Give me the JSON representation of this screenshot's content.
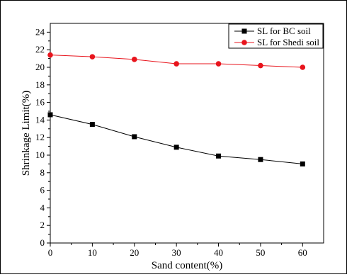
{
  "chart_data": {
    "type": "line",
    "xlabel": "Sand content(%)",
    "ylabel": "Shrinkage Limit(%)",
    "xlim": [
      0,
      65
    ],
    "ylim": [
      0,
      25
    ],
    "x_ticks": [
      "0",
      "10",
      "20",
      "30",
      "40",
      "50",
      "60"
    ],
    "y_ticks": [
      "0",
      "2",
      "4",
      "6",
      "8",
      "10",
      "12",
      "14",
      "16",
      "18",
      "20",
      "22",
      "24"
    ],
    "legend_position": "top-right",
    "grid": false,
    "series": [
      {
        "name": "SL for BC soil",
        "color": "#000000",
        "marker": "square",
        "x": [
          0,
          10,
          20,
          30,
          40,
          50,
          60
        ],
        "values": [
          14.6,
          13.5,
          12.1,
          10.9,
          9.9,
          9.5,
          9.0
        ]
      },
      {
        "name": "SL for Shedi soil",
        "color": "#e8141c",
        "marker": "circle",
        "x": [
          0,
          10,
          20,
          30,
          40,
          50,
          60
        ],
        "values": [
          21.4,
          21.2,
          20.9,
          20.4,
          20.4,
          20.2,
          20.0
        ]
      }
    ]
  }
}
